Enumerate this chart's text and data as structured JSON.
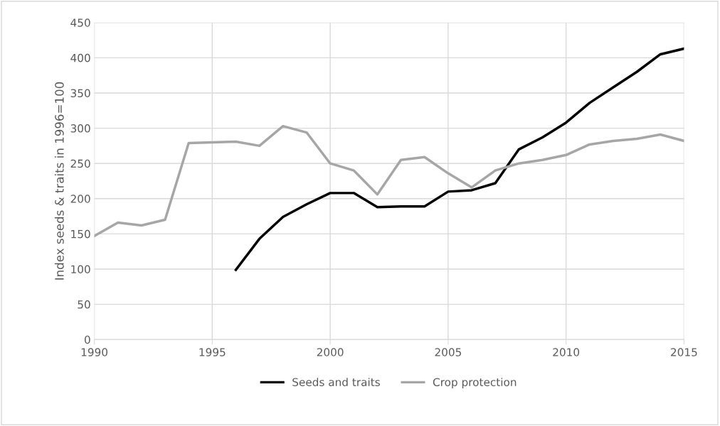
{
  "chart_data": {
    "type": "line",
    "ylabel": "Index seeds & traits in 1996=100",
    "series": [
      {
        "name": "Seeds and traits",
        "color": "#000000",
        "x": [
          1996,
          1997,
          1998,
          1999,
          2000,
          2001,
          2002,
          2003,
          2004,
          2005,
          2006,
          2007,
          2008,
          2009,
          2010,
          2011,
          2012,
          2013,
          2014,
          2015
        ],
        "values": [
          99,
          143,
          174,
          192,
          208,
          208,
          188,
          189,
          189,
          210,
          212,
          222,
          270,
          287,
          308,
          336,
          358,
          380,
          405,
          413
        ]
      },
      {
        "name": "Crop protection",
        "color": "#a6a6a6",
        "x": [
          1990,
          1991,
          1992,
          1993,
          1994,
          1995,
          1996,
          1997,
          1998,
          1999,
          2000,
          2001,
          2002,
          2003,
          2004,
          2005,
          2006,
          2007,
          2008,
          2009,
          2010,
          2011,
          2012,
          2013,
          2014,
          2015
        ],
        "values": [
          147,
          166,
          162,
          170,
          279,
          280,
          281,
          275,
          303,
          294,
          250,
          240,
          206,
          255,
          259,
          236,
          216,
          240,
          250,
          255,
          262,
          277,
          282,
          285,
          291,
          282
        ]
      }
    ],
    "xlim": [
      1990,
      2015
    ],
    "xticks": [
      1990,
      1995,
      2000,
      2005,
      2010,
      2015
    ],
    "ylim": [
      0,
      450
    ],
    "yticks": [
      0,
      50,
      100,
      150,
      200,
      250,
      300,
      350,
      400,
      450
    ],
    "grid": true,
    "legend": "bottom",
    "marker": "none",
    "line_style": "solid"
  }
}
